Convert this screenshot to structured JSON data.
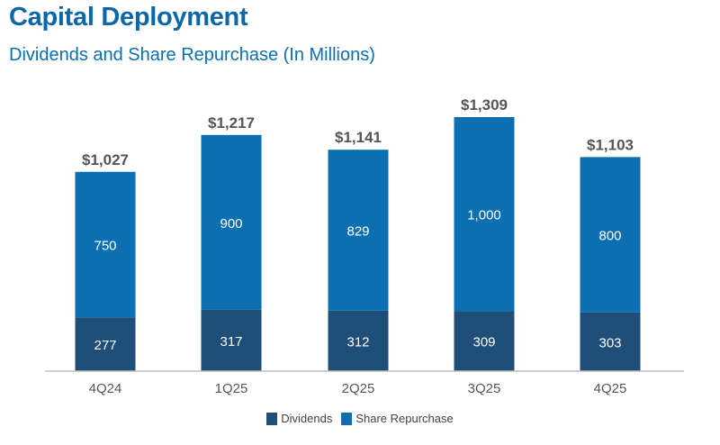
{
  "header": {
    "title": "Capital Deployment",
    "subtitle": "Dividends and Share Repurchase (In Millions)"
  },
  "colors": {
    "dividends": "#1f4e79",
    "share_repurchase": "#0b6fb1"
  },
  "chart_data": {
    "type": "bar",
    "stacked": true,
    "title": "Capital Deployment",
    "subtitle": "Dividends and Share Repurchase (In Millions)",
    "xlabel": "",
    "ylabel": "",
    "categories": [
      "4Q24",
      "1Q25",
      "2Q25",
      "3Q25",
      "4Q25"
    ],
    "series": [
      {
        "name": "Dividends",
        "values": [
          277,
          317,
          312,
          309,
          303
        ],
        "labels": [
          "277",
          "317",
          "312",
          "309",
          "303"
        ]
      },
      {
        "name": "Share Repurchase",
        "values": [
          750,
          900,
          829,
          1000,
          800
        ],
        "labels": [
          "750",
          "900",
          "829",
          "1,000",
          "800"
        ]
      }
    ],
    "totals": [
      1027,
      1217,
      1141,
      1309,
      1103
    ],
    "total_labels": [
      "$1,027",
      "$1,217",
      "$1,141",
      "$1,309",
      "$1,103"
    ],
    "ylim": [
      0,
      1309
    ],
    "grid": false,
    "legend": {
      "position": "bottom",
      "entries": [
        "Dividends",
        "Share Repurchase"
      ]
    }
  }
}
